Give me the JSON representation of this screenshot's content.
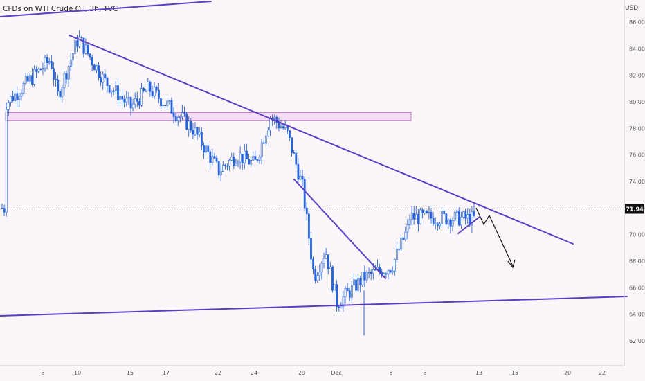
{
  "header": {
    "title": "CFDs on WTI Crude Oil, 3h, TVC",
    "currency": "USD"
  },
  "colors": {
    "background": "#fbf6fa",
    "candle": "#2563d9",
    "trendline": "#5b3cc4",
    "zone_fill": "#f2c4f3",
    "zone_border": "#b25ab4",
    "arrow": "#111111",
    "price_badge": "#111111"
  },
  "chart_data": {
    "type": "candlestick",
    "title": "CFDs on WTI Crude Oil, 3h, TVC",
    "ylim": [
      61,
      87.5
    ],
    "y_ticks": [
      "62.00",
      "64.00",
      "66.00",
      "68.00",
      "70.00",
      "72.00",
      "74.00",
      "76.00",
      "78.00",
      "80.00",
      "82.00",
      "84.00",
      "86.00"
    ],
    "x_ticks": [
      "8",
      "10",
      "15",
      "17",
      "22",
      "24",
      "29",
      "Dec",
      "6",
      "8",
      "13",
      "15",
      "20",
      "22"
    ],
    "last_price": "71.94",
    "grid": false,
    "zone": {
      "low": 78.6,
      "high": 79.2
    },
    "price_path": [
      [
        "8",
        79.8
      ],
      [
        "8",
        83.2
      ],
      [
        "8",
        80.4
      ],
      [
        "10",
        84.8
      ],
      [
        "10",
        81.6
      ],
      [
        "15",
        79.6
      ],
      [
        "15",
        81.0
      ],
      [
        "17",
        79.8
      ],
      [
        "17",
        78.0
      ],
      [
        "22",
        74.8
      ],
      [
        "22",
        76.0
      ],
      [
        "24",
        75.3
      ],
      [
        "24",
        78.9
      ],
      [
        "24",
        77.8
      ],
      [
        "29",
        73.6
      ],
      [
        "29",
        66.8
      ],
      [
        "29",
        68.8
      ],
      [
        "Dec",
        64.8
      ],
      [
        "Dec",
        66.8
      ],
      [
        "6",
        67.6
      ],
      [
        "6",
        70.6
      ],
      [
        "8",
        73.0
      ],
      [
        "8",
        71.8
      ],
      [
        "13",
        71.2
      ],
      [
        "13",
        72.0
      ]
    ],
    "annotations": {
      "trendlines": [
        {
          "name": "descending-resistance",
          "from": [
            "10",
            84.9
          ],
          "to": [
            "20",
            69.2
          ]
        },
        {
          "name": "upper-channel",
          "from": [
            "8",
            86.7
          ],
          "to": [
            "22",
            88.0
          ]
        },
        {
          "name": "support",
          "from": [
            "8",
            63.7
          ],
          "to": [
            "22",
            65.3
          ]
        },
        {
          "name": "local-downtrend",
          "from": [
            "29",
            74.5
          ],
          "to": [
            "6",
            66.5
          ]
        },
        {
          "name": "wedge-support",
          "from": [
            "13",
            70.3
          ],
          "to": [
            "13",
            71.9
          ]
        }
      ],
      "projection_arrow": [
        [
          "13",
          71.9
        ],
        [
          "15",
          70.0
        ],
        [
          "15",
          71.2
        ],
        [
          "15",
          67.0
        ]
      ]
    }
  }
}
